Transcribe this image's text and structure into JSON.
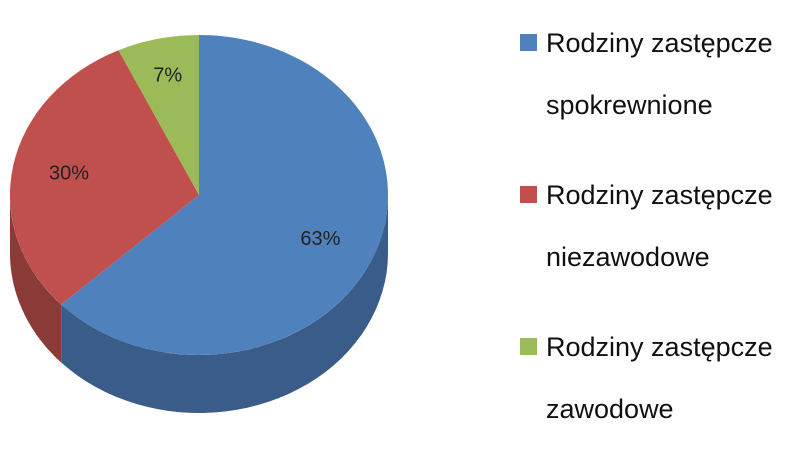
{
  "chart_data": {
    "type": "pie",
    "categories": [
      "Rodziny zastępcze spokrewnione",
      "Rodziny zastępcze niezawodowe",
      "Rodziny zastępcze zawodowe"
    ],
    "values": [
      63,
      30,
      7
    ],
    "value_labels": [
      "63%",
      "30%",
      "7%"
    ],
    "colors": [
      "#4f81bd",
      "#c0504d",
      "#9bbb59"
    ],
    "legend": "right"
  }
}
